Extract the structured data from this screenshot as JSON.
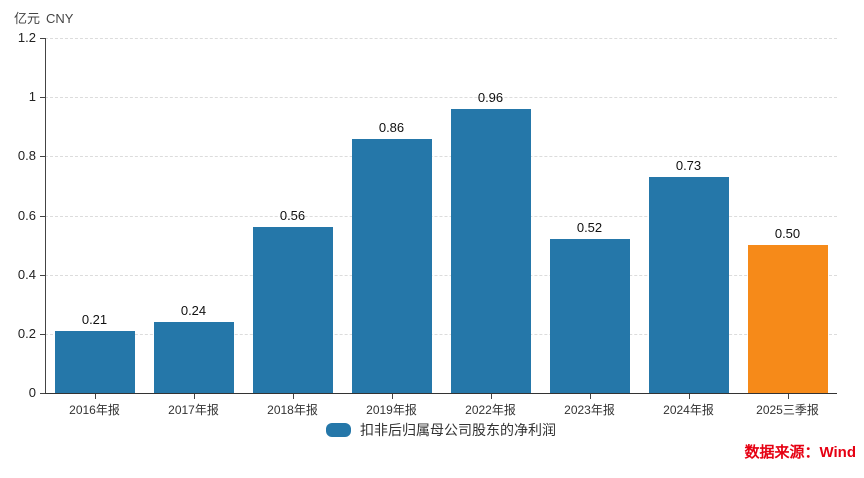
{
  "chart": {
    "unit_cn": "亿元",
    "unit_en": "CNY",
    "source_text": "数据来源：Wind",
    "colors": {
      "bar_blue": "#2577a9",
      "bar_orange": "#f68a19",
      "source_red": "#e60012",
      "grid": "#dcdcdc",
      "axis": "#444444"
    }
  },
  "chart_data": {
    "type": "bar",
    "title": "",
    "categories": [
      "2016年报",
      "2017年报",
      "2018年报",
      "2019年报",
      "2022年报",
      "2023年报",
      "2024年报",
      "2025三季报"
    ],
    "values": [
      0.21,
      0.24,
      0.56,
      0.86,
      0.96,
      0.52,
      0.73,
      0.5
    ],
    "value_labels": [
      "0.21",
      "0.24",
      "0.56",
      "0.86",
      "0.96",
      "0.52",
      "0.73",
      "0.50"
    ],
    "bar_colors": [
      "#2577a9",
      "#2577a9",
      "#2577a9",
      "#2577a9",
      "#2577a9",
      "#2577a9",
      "#2577a9",
      "#f68a19"
    ],
    "legend": "扣非后归属母公司股东的净利润",
    "xlabel": "",
    "ylabel": "亿元 CNY",
    "ylim": [
      0,
      1.2
    ],
    "yticks": [
      0,
      0.2,
      0.4,
      0.6,
      0.8,
      1,
      1.2
    ],
    "ytick_labels": [
      "0",
      "0.2",
      "0.4",
      "0.6",
      "0.8",
      "1",
      "1.2"
    ],
    "grid": "horizontal-dashed",
    "legend_position": "bottom-center"
  }
}
